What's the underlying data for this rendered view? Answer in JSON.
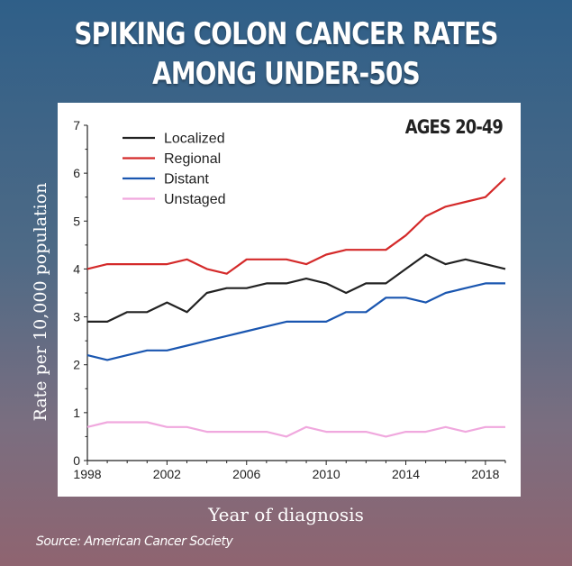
{
  "headline": {
    "line1": "SPIKING COLON CANCER RATES",
    "line2": "AMONG UNDER-50S"
  },
  "source": "Source: American Cancer Society",
  "chart_data": {
    "type": "line",
    "title": "",
    "annotation": "AGES 20-49",
    "xlabel": "Year of diagnosis",
    "ylabel": "Rate per 10,000 population",
    "xlim": [
      1998,
      2019
    ],
    "ylim": [
      0,
      7
    ],
    "xticks": [
      1998,
      2002,
      2006,
      2010,
      2014,
      2018
    ],
    "yticks": [
      0,
      1,
      2,
      3,
      4,
      5,
      6,
      7
    ],
    "x": [
      1998,
      1999,
      2000,
      2001,
      2002,
      2003,
      2004,
      2005,
      2006,
      2007,
      2008,
      2009,
      2010,
      2011,
      2012,
      2013,
      2014,
      2015,
      2016,
      2017,
      2018,
      2019
    ],
    "legend_position": "top-left",
    "series": [
      {
        "name": "Localized",
        "color": "#222222",
        "values": [
          2.9,
          2.9,
          3.1,
          3.1,
          3.3,
          3.1,
          3.5,
          3.6,
          3.6,
          3.7,
          3.7,
          3.8,
          3.7,
          3.5,
          3.7,
          3.7,
          4.0,
          4.3,
          4.1,
          4.2,
          4.1,
          4.0
        ]
      },
      {
        "name": "Regional",
        "color": "#d42a2a",
        "values": [
          4.0,
          4.1,
          4.1,
          4.1,
          4.1,
          4.2,
          4.0,
          3.9,
          4.2,
          4.2,
          4.2,
          4.1,
          4.3,
          4.4,
          4.4,
          4.4,
          4.7,
          5.1,
          5.3,
          5.4,
          5.5,
          5.9
        ]
      },
      {
        "name": "Distant",
        "color": "#1a56b0",
        "values": [
          2.2,
          2.1,
          2.2,
          2.3,
          2.3,
          2.4,
          2.5,
          2.6,
          2.7,
          2.8,
          2.9,
          2.9,
          2.9,
          3.1,
          3.1,
          3.4,
          3.4,
          3.3,
          3.5,
          3.6,
          3.7,
          3.7
        ]
      },
      {
        "name": "Unstaged",
        "color": "#f0a8de",
        "values": [
          0.7,
          0.8,
          0.8,
          0.8,
          0.7,
          0.7,
          0.6,
          0.6,
          0.6,
          0.6,
          0.5,
          0.7,
          0.6,
          0.6,
          0.6,
          0.5,
          0.6,
          0.6,
          0.7,
          0.6,
          0.7,
          0.7
        ]
      }
    ]
  }
}
